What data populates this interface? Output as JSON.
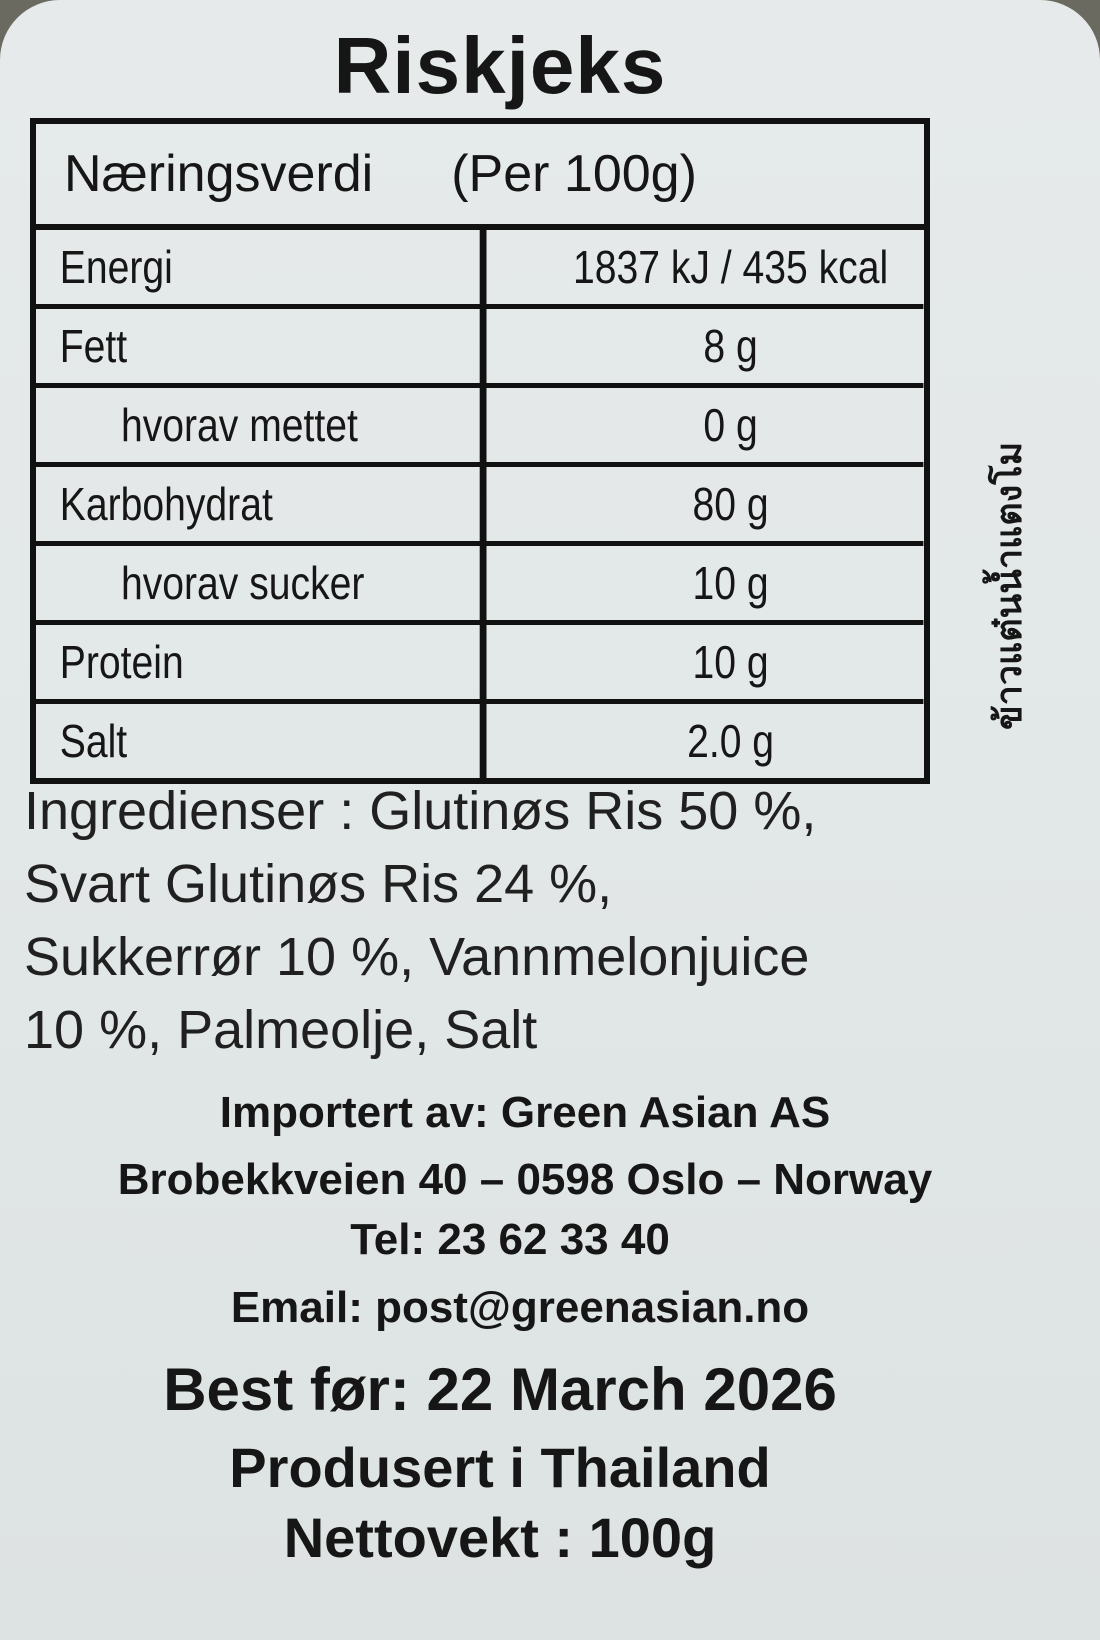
{
  "title": "Riskjeks",
  "nutrition": {
    "header": "Næringsverdi",
    "per": "(Per 100g)",
    "rows": [
      {
        "name": "Energi",
        "value": "1837 kJ /  435 kcal"
      },
      {
        "name": "Fett",
        "value": "8 g"
      },
      {
        "name": "hvorav mettet",
        "value": "0 g",
        "sub": true
      },
      {
        "name": "Karbohydrat",
        "value": "80 g"
      },
      {
        "name": "hvorav sucker",
        "value": "10 g",
        "sub": true
      },
      {
        "name": "Protein",
        "value": "10 g"
      },
      {
        "name": "Salt",
        "value": "2.0 g"
      }
    ]
  },
  "side_text": "ข้าวแต๋นน้ำแตงโม",
  "ingredients": [
    "Ingredienser : Glutinøs Ris 50 %,",
    "Svart Glutinøs Ris 24 %,",
    "Sukkerrør 10 %, Vannmelonjuice",
    "10 %, Palmeolje, Salt"
  ],
  "importer": {
    "line1": "Importert av: Green Asian AS",
    "line2": "Brobekkveien 40 – 0598 Oslo – Norway",
    "tel": "Tel: 23 62 33 40",
    "email": "Email: post@greenasian.no"
  },
  "best_before": "Best før: 22 March 2026",
  "origin": "Produsert i Thailand",
  "net_weight": "Nettovekt : 100g"
}
